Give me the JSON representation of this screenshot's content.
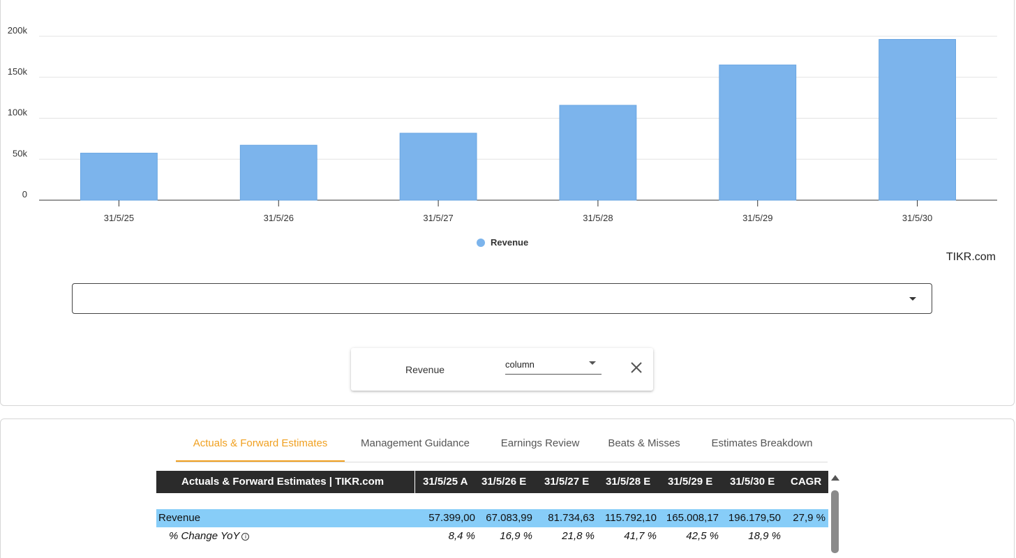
{
  "chart_data": {
    "type": "bar",
    "categories": [
      "31/5/25",
      "31/5/26",
      "31/5/27",
      "31/5/28",
      "31/5/29",
      "31/5/30"
    ],
    "series": [
      {
        "name": "Revenue",
        "values": [
          57399.0,
          67083.99,
          81734.63,
          115792.1,
          165008.17,
          196179.5
        ]
      }
    ],
    "yticks": [
      "0",
      "50k",
      "100k",
      "150k",
      "200k"
    ],
    "ylim": [
      0,
      200000
    ],
    "grid": true,
    "legend_position": "bottom-center",
    "bar_color": "#7cb4ec"
  },
  "credit": "TIKR.com",
  "legend": {
    "label": "Revenue"
  },
  "chart_select": {
    "value": "",
    "icon": "caret-down-icon"
  },
  "series_editor": {
    "name": "Revenue",
    "type_value": "column",
    "remove_icon": "close-icon"
  },
  "tabs": [
    {
      "label": "Actuals & Forward Estimates",
      "active": true
    },
    {
      "label": "Management Guidance",
      "active": false
    },
    {
      "label": "Earnings Review",
      "active": false
    },
    {
      "label": "Beats & Misses",
      "active": false
    },
    {
      "label": "Estimates Breakdown",
      "active": false
    }
  ],
  "estimates_table": {
    "title": "Actuals & Forward Estimates | TIKR.com",
    "columns": [
      "31/5/25 A",
      "31/5/26 E",
      "31/5/27 E",
      "31/5/28 E",
      "31/5/29 E",
      "31/5/30 E",
      "CAGR"
    ],
    "rows": [
      {
        "label": "Revenue",
        "values": [
          "57.399,00",
          "67.083,99",
          "81.734,63",
          "115.792,10",
          "165.008,17",
          "196.179,50",
          "27,9 %"
        ]
      },
      {
        "label": "% Change YoY",
        "values": [
          "8,4 %",
          "16,9 %",
          "21,8 %",
          "41,7 %",
          "42,5 %",
          "18,9 %",
          ""
        ]
      }
    ],
    "info_icon": "i"
  },
  "colors": {
    "accent": "#f0a020",
    "highlight_row": "#87cdf8",
    "header_bg": "#2b2b2b",
    "bar": "#7cb4ec"
  }
}
